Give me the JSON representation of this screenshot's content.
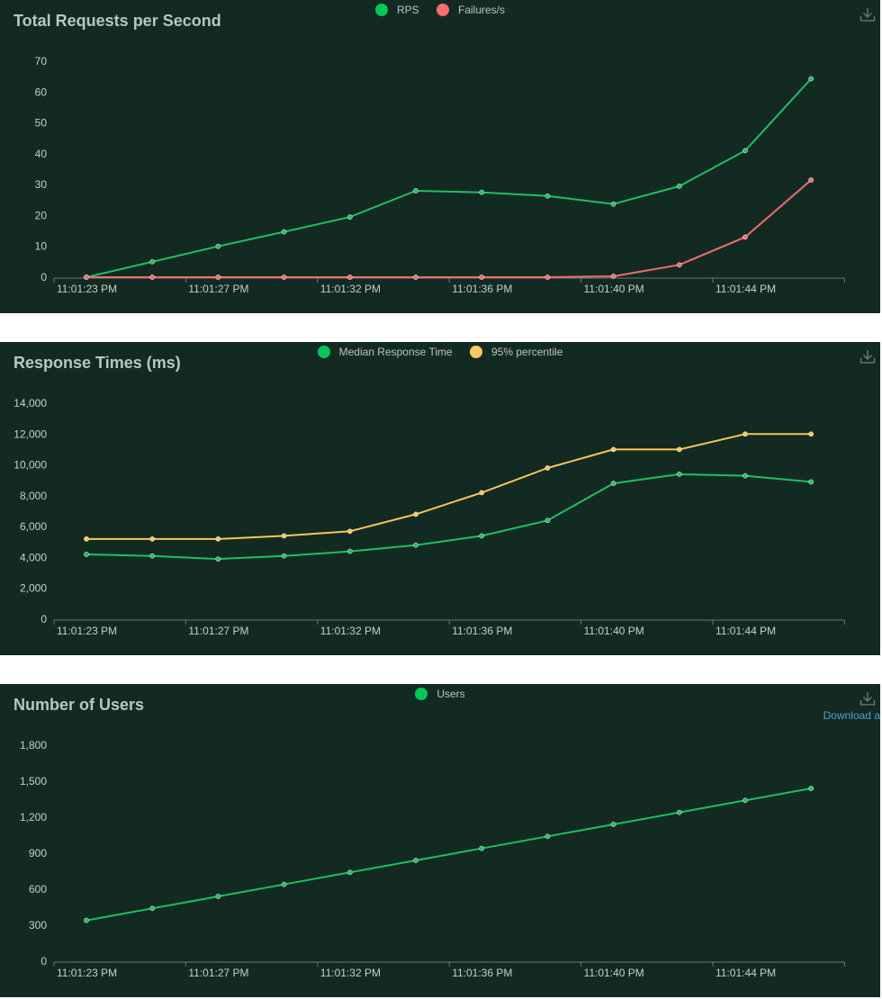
{
  "colors": {
    "background": "#132a22",
    "text": "#b8c7bf",
    "axis": "#6b7a72",
    "green": "#1fbf62",
    "red": "#ee6e6e",
    "yellow": "#f8c65a",
    "link": "#4aa3d8"
  },
  "charts": [
    {
      "id": "rps",
      "title": "Total Requests per Second",
      "legend": [
        {
          "label": "RPS",
          "color": "#00c853"
        },
        {
          "label": "Failures/s",
          "color": "#ff6d6d"
        }
      ],
      "download_icon": "download-icon"
    },
    {
      "id": "rt",
      "title": "Response Times (ms)",
      "legend": [
        {
          "label": "Median Response Time",
          "color": "#00c853"
        },
        {
          "label": "95% percentile",
          "color": "#ffca5f"
        }
      ],
      "download_icon": "download-icon"
    },
    {
      "id": "users",
      "title": "Number of Users",
      "legend": [
        {
          "label": "Users",
          "color": "#00c853"
        }
      ],
      "download_icon": "download-icon",
      "download_link": "Download a"
    }
  ],
  "chart_data": [
    {
      "type": "line",
      "title": "Total Requests per Second",
      "x": [
        "11:01:23 PM",
        "11:01:25 PM",
        "11:01:27 PM",
        "11:01:29 PM",
        "11:01:32 PM",
        "11:01:34 PM",
        "11:01:36 PM",
        "11:01:38 PM",
        "11:01:40 PM",
        "11:01:42 PM",
        "11:01:44 PM",
        "11:01:46 PM"
      ],
      "x_tick_labels": [
        "11:01:23 PM",
        "11:01:27 PM",
        "11:01:32 PM",
        "11:01:36 PM",
        "11:01:40 PM",
        "11:01:44 PM"
      ],
      "series": [
        {
          "name": "RPS",
          "color": "#1fbf62",
          "values": [
            0,
            5,
            10,
            14.7,
            19.5,
            28,
            27.5,
            26.3,
            23.7,
            29.5,
            41,
            64.3
          ]
        },
        {
          "name": "Failures/s",
          "color": "#ee6e6e",
          "values": [
            0,
            0,
            0,
            0,
            0,
            0,
            0,
            0,
            0.3,
            4,
            13,
            31.5
          ]
        }
      ],
      "ylim": [
        0,
        70
      ],
      "y_ticks": [
        0,
        10,
        20,
        30,
        40,
        50,
        60,
        70
      ],
      "y_tick_labels": [
        "0",
        "10",
        "20",
        "30",
        "40",
        "50",
        "60",
        "70"
      ],
      "grid": false,
      "legend_position": "top-center"
    },
    {
      "type": "line",
      "title": "Response Times (ms)",
      "x": [
        "11:01:23 PM",
        "11:01:25 PM",
        "11:01:27 PM",
        "11:01:29 PM",
        "11:01:32 PM",
        "11:01:34 PM",
        "11:01:36 PM",
        "11:01:38 PM",
        "11:01:40 PM",
        "11:01:42 PM",
        "11:01:44 PM",
        "11:01:46 PM"
      ],
      "x_tick_labels": [
        "11:01:23 PM",
        "11:01:27 PM",
        "11:01:32 PM",
        "11:01:36 PM",
        "11:01:40 PM",
        "11:01:44 PM"
      ],
      "series": [
        {
          "name": "Median Response Time",
          "color": "#1fbf62",
          "values": [
            4200,
            4100,
            3900,
            4100,
            4400,
            4800,
            5400,
            6400,
            8800,
            9400,
            9300,
            8900
          ]
        },
        {
          "name": "95% percentile",
          "color": "#f8c65a",
          "values": [
            5200,
            5200,
            5200,
            5400,
            5700,
            6800,
            8200,
            9800,
            11000,
            11000,
            12000,
            12000
          ]
        }
      ],
      "ylim": [
        0,
        14000
      ],
      "y_ticks": [
        0,
        2000,
        4000,
        6000,
        8000,
        10000,
        12000,
        14000
      ],
      "y_tick_labels": [
        "0",
        "2,000",
        "4,000",
        "6,000",
        "8,000",
        "10,000",
        "12,000",
        "14,000"
      ],
      "grid": false,
      "legend_position": "top-center"
    },
    {
      "type": "line",
      "title": "Number of Users",
      "x": [
        "11:01:23 PM",
        "11:01:25 PM",
        "11:01:27 PM",
        "11:01:29 PM",
        "11:01:32 PM",
        "11:01:34 PM",
        "11:01:36 PM",
        "11:01:38 PM",
        "11:01:40 PM",
        "11:01:42 PM",
        "11:01:44 PM",
        "11:01:46 PM"
      ],
      "x_tick_labels": [
        "11:01:23 PM",
        "11:01:27 PM",
        "11:01:32 PM",
        "11:01:36 PM",
        "11:01:40 PM",
        "11:01:44 PM"
      ],
      "series": [
        {
          "name": "Users",
          "color": "#1fbf62",
          "values": [
            340,
            440,
            540,
            640,
            740,
            840,
            940,
            1040,
            1140,
            1240,
            1340,
            1440
          ]
        }
      ],
      "ylim": [
        0,
        1800
      ],
      "y_ticks": [
        0,
        300,
        600,
        900,
        1200,
        1500,
        1800
      ],
      "y_tick_labels": [
        "0",
        "300",
        "600",
        "900",
        "1,200",
        "1,500",
        "1,800"
      ],
      "grid": false,
      "legend_position": "top-center"
    }
  ]
}
